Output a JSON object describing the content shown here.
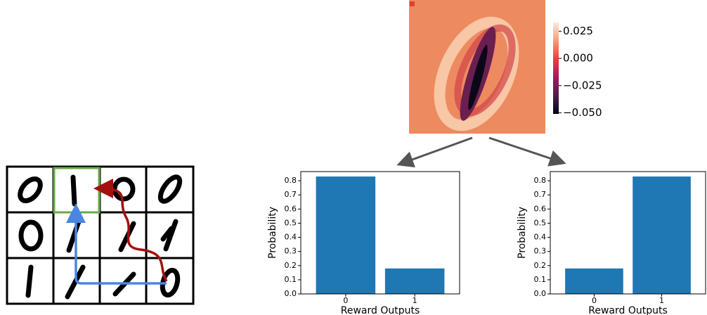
{
  "chart_data": [
    {
      "type": "heatmap",
      "clim": [
        -0.051,
        0.033
      ],
      "cticks": [
        {
          "value": 0.025,
          "label": "0.025"
        },
        {
          "value": 0,
          "label": "0.000"
        },
        {
          "value": -0.025,
          "label": "−0.025"
        },
        {
          "value": -0.05,
          "label": "−0.050"
        }
      ],
      "colors": [
        "#03051a",
        "#4c1d4b",
        "#a11a5b",
        "#e83f3f",
        "#f69c73",
        "#faebdd"
      ]
    },
    {
      "type": "bar",
      "xlabel": "Reward Outputs",
      "ylabel": "Probability",
      "categories": [
        "0",
        "1"
      ],
      "values": [
        0.83,
        0.18
      ],
      "color": "#1f77b4",
      "ylim": [
        0,
        0.865
      ],
      "yticks": [
        {
          "value": 0,
          "label": "0.0"
        },
        0.1,
        0.2,
        0.3,
        0.4,
        0.5,
        0.6,
        0.7,
        0.8
      ]
    },
    {
      "type": "bar",
      "xlabel": "Reward Outputs",
      "ylabel": "Probability",
      "categories": [
        "0",
        "1"
      ],
      "values": [
        0.18,
        0.83
      ],
      "color": "#1f77b4",
      "ylim": [
        0,
        0.865
      ],
      "yticks": [
        {
          "value": 0,
          "label": "0.0"
        },
        0.1,
        0.2,
        0.3,
        0.4,
        0.5,
        0.6,
        0.7,
        0.8
      ]
    }
  ]
}
